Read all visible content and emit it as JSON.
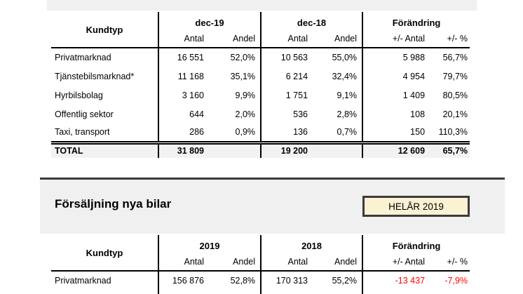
{
  "colors": {
    "negative": "#ff0000",
    "panel_gray": "#f0f0f0",
    "total_row_gray": "#f2f2f2",
    "badge_bg": "#fbf2d3",
    "badge_border": "#3b3b3b",
    "dark_border": "#3a3a3a",
    "table_line": "#000000"
  },
  "monthly_table": {
    "kundtyp_header": "Kundtyp",
    "group_headers": [
      "dec-19",
      "dec-18",
      "Förändring"
    ],
    "sub_headers": [
      "Antal",
      "Andel",
      "Antal",
      "Andel",
      "+/- Antal",
      "+/- %"
    ],
    "rows": [
      {
        "label": "Privatmarknad",
        "cells": [
          "16 551",
          "52,0%",
          "10 563",
          "55,0%",
          "5 988",
          "56,7%"
        ]
      },
      {
        "label": "Tjänstebilsmarknad*",
        "cells": [
          "11 168",
          "35,1%",
          "6 214",
          "32,4%",
          "4 954",
          "79,7%"
        ]
      },
      {
        "label": "Hyrbilsbolag",
        "cells": [
          "3 160",
          "9,9%",
          "1 751",
          "9,1%",
          "1 409",
          "80,5%"
        ]
      },
      {
        "label": "Offentlig sektor",
        "cells": [
          "644",
          "2,0%",
          "536",
          "2,8%",
          "108",
          "20,1%"
        ]
      },
      {
        "label": "Taxi, transport",
        "cells": [
          "286",
          "0,9%",
          "136",
          "0,7%",
          "150",
          "110,3%"
        ]
      }
    ],
    "total_row": {
      "label": "TOTAL",
      "cells": [
        "31 809",
        "",
        "19 200",
        "",
        "12 609",
        "65,7%"
      ]
    }
  },
  "yearly_section": {
    "title": "Försäljning nya bilar",
    "badge_label": "HELÅR 2019"
  },
  "yearly_table": {
    "kundtyp_header": "Kundtyp",
    "group_headers": [
      "2019",
      "2018",
      "Förändring"
    ],
    "sub_headers": [
      "Antal",
      "Andel",
      "Antal",
      "Andel",
      "+/- Antal",
      "+/- %"
    ],
    "rows": [
      {
        "label": "Privatmarknad",
        "cells": [
          "156 876",
          "52,8%",
          "170 313",
          "55,2%",
          "-13 437",
          "-7,9%"
        ]
      }
    ]
  }
}
